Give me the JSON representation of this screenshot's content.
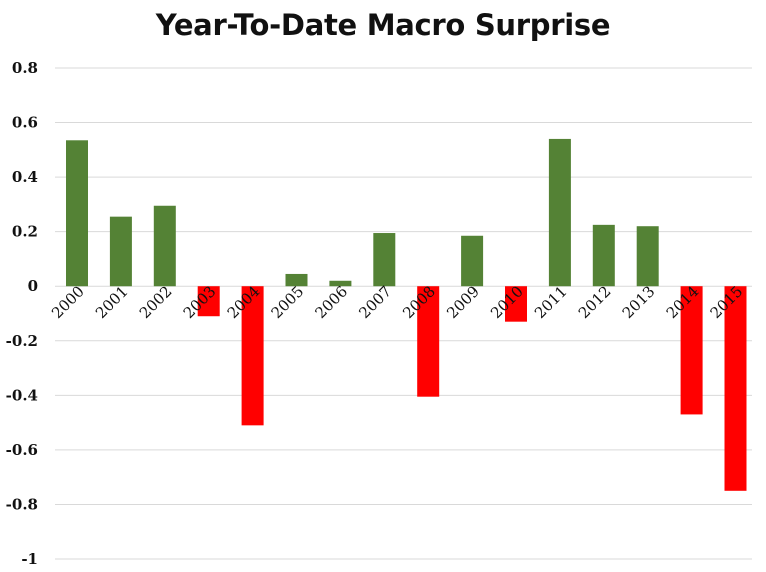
{
  "chart_data": {
    "type": "bar",
    "title": "Year-To-Date Macro Surprise",
    "categories": [
      "2000",
      "2001",
      "2002",
      "2003",
      "2004",
      "2005",
      "2006",
      "2007",
      "2008",
      "2009",
      "2010",
      "2011",
      "2012",
      "2013",
      "2014",
      "2015"
    ],
    "values": [
      0.535,
      0.255,
      0.295,
      -0.11,
      -0.51,
      0.045,
      0.02,
      0.195,
      -0.405,
      0.185,
      -0.13,
      0.54,
      0.225,
      0.22,
      -0.47,
      -0.75
    ],
    "ylim": [
      -1,
      0.8
    ],
    "yticks": [
      0.8,
      0.6,
      0.4,
      0.2,
      0,
      -0.2,
      -0.4,
      -0.6,
      -0.8,
      -1
    ],
    "ytick_labels": [
      "0.8",
      "0.6",
      "0.4",
      "0.2",
      "0",
      "-0.2",
      "-0.4",
      "-0.6",
      "-0.8",
      "-1"
    ],
    "grid": true,
    "colors": {
      "positive": "#548235",
      "negative": "#ff0000",
      "grid": "#d9d9d9"
    }
  }
}
